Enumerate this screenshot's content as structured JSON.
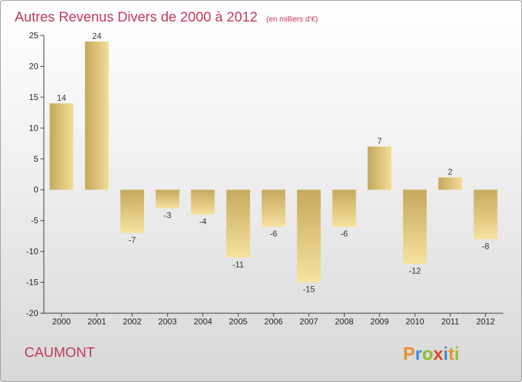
{
  "title": "Autres Revenus Divers de 2000 à 2012",
  "unit": "(en milliers d'€)",
  "commune": "CAUMONT",
  "logo": {
    "letters": [
      "P",
      "r",
      "o",
      "x",
      "i",
      "t",
      "i"
    ],
    "colors": [
      "#e8912b",
      "#3f8fd6",
      "#8cbf2f",
      "#e0452f",
      "#3f8fd6",
      "#e8912b",
      "#8cbf2f"
    ]
  },
  "colors": {
    "bar_light": "#f5de9a",
    "bar_dark": "#c8ab5e",
    "title": "#c03a5a"
  },
  "chart_data": {
    "type": "bar",
    "categories": [
      "2000",
      "2001",
      "2002",
      "2003",
      "2004",
      "2005",
      "2006",
      "2007",
      "2008",
      "2009",
      "2010",
      "2011",
      "2012"
    ],
    "values": [
      14,
      24,
      -7,
      -3,
      -4,
      -11,
      -6,
      -15,
      -6,
      7,
      -12,
      2,
      -8
    ],
    "labels": [
      "14",
      "24",
      "-7",
      "-3",
      "-4",
      "-11",
      "-6",
      "-15",
      "-6",
      "7",
      "-12",
      "2",
      "-8"
    ],
    "yticks": [
      25,
      20,
      15,
      10,
      5,
      0,
      -5,
      -10,
      -15,
      -20
    ],
    "ylim": [
      -20,
      25
    ],
    "grid": false,
    "legend": "none"
  }
}
